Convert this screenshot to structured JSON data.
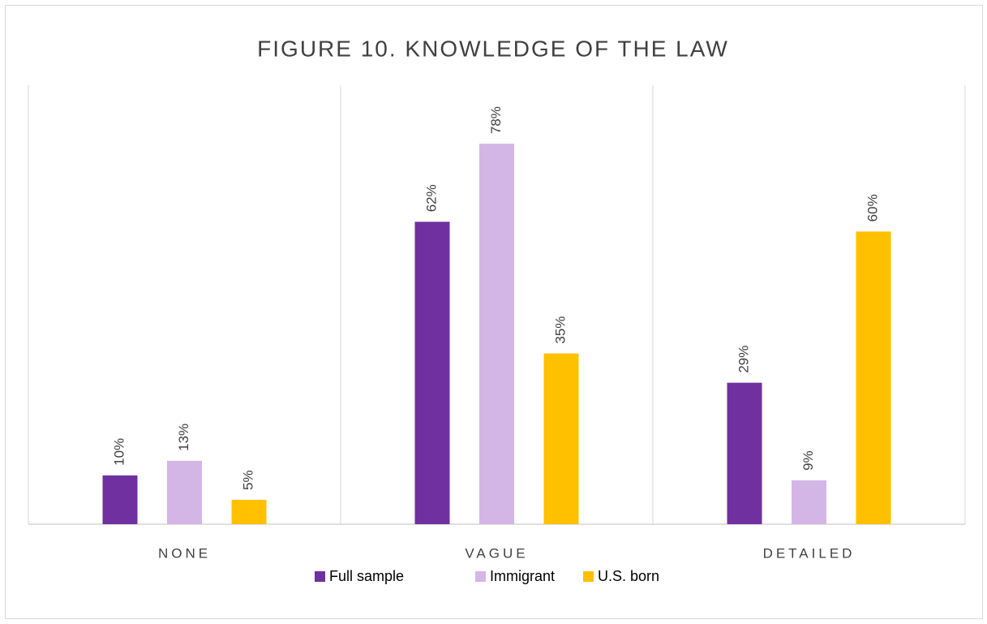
{
  "chart_data": {
    "type": "bar",
    "title": "FIGURE 10. KNOWLEDGE OF THE LAW",
    "categories": [
      "NONE",
      "VAGUE",
      "DETAILED"
    ],
    "series": [
      {
        "name": "Full sample",
        "color": "#7030a0",
        "values": [
          10,
          62,
          29
        ],
        "value_labels": [
          "10%",
          "62%",
          "29%"
        ]
      },
      {
        "name": "Immigrant",
        "color": "#d4b6e6",
        "values": [
          13,
          78,
          9
        ],
        "value_labels": [
          "13%",
          "78%",
          "9%"
        ]
      },
      {
        "name": "U.S. born",
        "color": "#ffc000",
        "values": [
          5,
          35,
          60
        ],
        "value_labels": [
          "5%",
          "35%",
          "60%"
        ]
      }
    ],
    "ylim": [
      0,
      90
    ],
    "legend": "bottom"
  }
}
